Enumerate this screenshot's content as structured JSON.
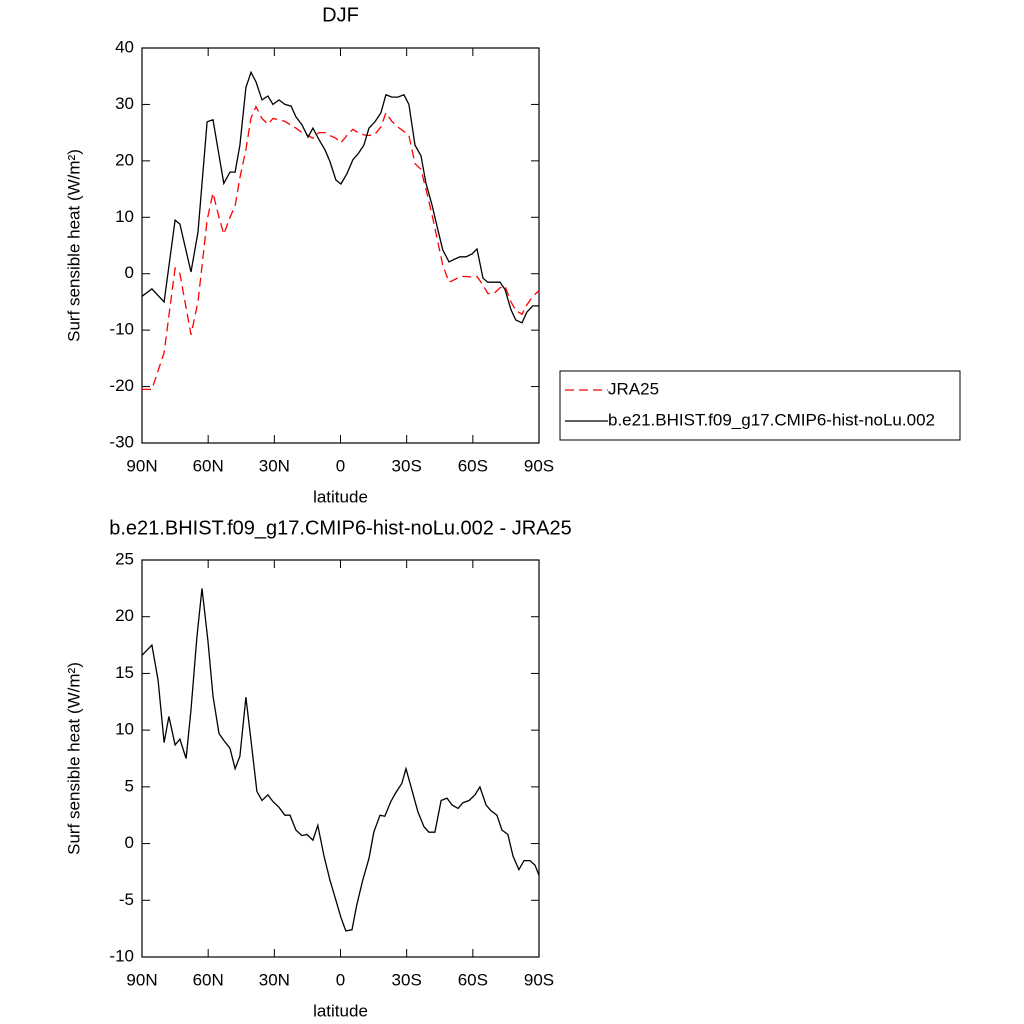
{
  "chart_data": [
    {
      "type": "line",
      "title": "DJF",
      "xlabel": "latitude",
      "ylabel": "Surf sensible heat (W/m²)",
      "x": [
        90,
        85.5,
        80,
        75,
        72.8,
        67.8,
        64.6,
        60.5,
        57.8,
        55.1,
        52.9,
        50.1,
        47.8,
        45.6,
        42.9,
        40.6,
        38.3,
        35.6,
        32.9,
        30.6,
        27.9,
        25.2,
        22.4,
        20.2,
        17.5,
        14.7,
        12.5,
        9.8,
        7.0,
        4.8,
        2.1,
        -0.2,
        -2.9,
        -5.6,
        -7.9,
        -10.6,
        -12.9,
        -15.6,
        -18.3,
        -20.6,
        -23.3,
        -26.0,
        -28.8,
        -31.0,
        -33.8,
        -36.5,
        -38.7,
        -41.5,
        -44.2,
        -46.4,
        -49.2,
        -51.9,
        -54.2,
        -56.9,
        -59.6,
        -61.9,
        -64.6,
        -66.8,
        -69.6,
        -72.3,
        -74.6,
        -77.3,
        -79.5,
        -82.3,
        -84.5,
        -87.2,
        -90
      ],
      "series": [
        {
          "name": "JRA25",
          "color": "#ff0000",
          "dash": true,
          "values": [
            -20.5,
            -20.5,
            -14,
            1,
            0,
            -10.8,
            -5,
            9.5,
            14.3,
            10,
            7,
            10,
            12,
            17,
            22,
            27.6,
            29.6,
            27.5,
            26.5,
            27.5,
            27.3,
            27,
            26.3,
            25.8,
            25,
            24.5,
            24,
            25,
            25,
            24.5,
            24,
            23.2,
            24.5,
            25.6,
            25,
            24.6,
            24.5,
            24.7,
            26,
            28.5,
            27,
            26,
            25.2,
            24.5,
            19.5,
            18.5,
            15,
            10.5,
            5.5,
            1.5,
            -1.5,
            -1,
            -0.5,
            -0.5,
            -0.6,
            -0.5,
            -2,
            -3.5,
            -3.5,
            -2.5,
            -2.2,
            -5,
            -6.5,
            -7.2,
            -5.5,
            -4,
            -3
          ]
        },
        {
          "name": "b.e21.BHIST.f09_g17.CMIP6-hist-noLu.002",
          "color": "#000000",
          "dash": false,
          "values": [
            -4,
            -2.7,
            -5,
            9.5,
            8.8,
            0.3,
            7.4,
            26.9,
            27.3,
            21,
            16,
            18,
            18,
            22.8,
            33,
            35.7,
            34,
            30.8,
            31.5,
            30,
            30.8,
            30,
            29.7,
            27.8,
            26.4,
            24.2,
            25.8,
            23.8,
            21.9,
            19.9,
            16.6,
            15.9,
            17.7,
            20.2,
            21.2,
            22.8,
            25.8,
            26.9,
            28.5,
            31.7,
            31.3,
            31.3,
            31.7,
            30,
            22.8,
            20.9,
            16.1,
            12.2,
            7.7,
            4.2,
            2.1,
            2.6,
            3,
            3,
            3.5,
            4.4,
            -0.8,
            -1.5,
            -1.5,
            -1.5,
            -2.8,
            -6.4,
            -8.2,
            -8.7,
            -6.8,
            -5.7,
            -5.7
          ]
        }
      ],
      "xlim": [
        90,
        -90
      ],
      "xticks": [
        {
          "value": 90,
          "label": "90N"
        },
        {
          "value": 60,
          "label": "60N"
        },
        {
          "value": 30,
          "label": "30N"
        },
        0,
        {
          "value": -30,
          "label": "30S"
        },
        {
          "value": -60,
          "label": "60S"
        },
        {
          "value": -90,
          "label": "90S"
        }
      ],
      "ylim": [
        -30,
        40
      ],
      "yticks": [
        -30,
        -20,
        -10,
        0,
        10,
        20,
        30,
        40
      ],
      "legend": "right"
    },
    {
      "type": "line",
      "title": "b.e21.BHIST.f09_g17.CMIP6-hist-noLu.002 - JRA25",
      "xlabel": "latitude",
      "ylabel": "Surf sensible heat (W/m²)",
      "x": [
        90,
        85.5,
        82.7,
        80.0,
        77.8,
        75.0,
        72.8,
        70.0,
        67.8,
        65.1,
        62.8,
        60.1,
        57.8,
        55.1,
        52.9,
        50.1,
        47.8,
        45.6,
        42.9,
        40.6,
        37.9,
        35.6,
        32.9,
        30.6,
        27.9,
        25.2,
        22.9,
        20.2,
        17.5,
        15.2,
        12.5,
        10.3,
        7.5,
        4.8,
        2.1,
        -0.2,
        -2.4,
        -5.2,
        -7.4,
        -10.1,
        -12.9,
        -15.1,
        -17.9,
        -20.1,
        -22.8,
        -25.1,
        -27.8,
        -29.7,
        -32.4,
        -35.1,
        -37.8,
        -40.1,
        -42.8,
        -45.6,
        -48.3,
        -50.6,
        -53.3,
        -55.5,
        -58.3,
        -61.0,
        -63.2,
        -66.0,
        -68.2,
        -70.9,
        -73.2,
        -75.9,
        -78.2,
        -80.9,
        -83.2,
        -85.9,
        -88.2,
        -90
      ],
      "series": [
        {
          "color": "#000000",
          "values": [
            16.6,
            17.5,
            14.4,
            8.9,
            11.2,
            8.7,
            9.2,
            7.5,
            11.8,
            18.2,
            22.5,
            17.9,
            13,
            9.7,
            9.1,
            8.4,
            6.6,
            7.7,
            12.9,
            9.1,
            4.6,
            3.8,
            4.3,
            3.7,
            3.2,
            2.5,
            2.5,
            1.2,
            0.7,
            0.8,
            0.3,
            1.6,
            -1.1,
            -3.2,
            -5,
            -6.5,
            -7.7,
            -7.6,
            -5.4,
            -3.2,
            -1.3,
            1,
            2.5,
            2.4,
            3.7,
            4.5,
            5.3,
            6.6,
            4.7,
            2.8,
            1.5,
            1,
            1,
            3.8,
            4,
            3.4,
            3.1,
            3.6,
            3.8,
            4.3,
            5,
            3.4,
            2.9,
            2.5,
            1.2,
            0.8,
            -1.1,
            -2.3,
            -1.5,
            -1.5,
            -1.9,
            -2.8
          ]
        }
      ],
      "xlim": [
        90,
        -90
      ],
      "xticks": [
        {
          "value": 90,
          "label": "90N"
        },
        {
          "value": 60,
          "label": "60N"
        },
        {
          "value": 30,
          "label": "30N"
        },
        0,
        {
          "value": -30,
          "label": "30S"
        },
        {
          "value": -60,
          "label": "60S"
        },
        {
          "value": -90,
          "label": "90S"
        }
      ],
      "ylim": [
        -10,
        25
      ],
      "yticks": [
        -10,
        -5,
        0,
        5,
        10,
        15,
        20,
        25
      ]
    }
  ]
}
